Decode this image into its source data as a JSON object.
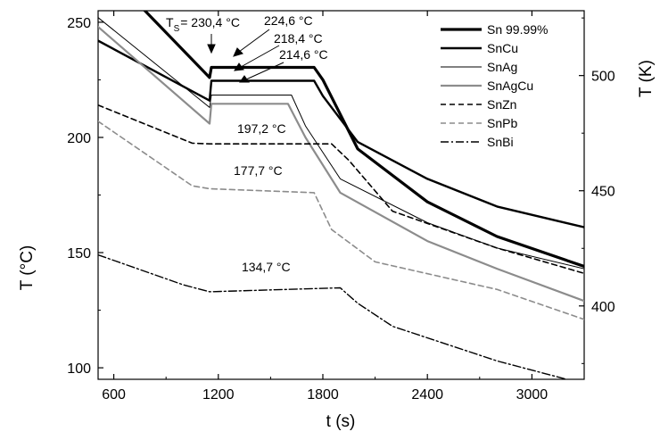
{
  "chart_data": {
    "type": "line",
    "xlabel": "t (s)",
    "ylabel": "T (°C)",
    "y2label": "T (K)",
    "xlim": [
      510,
      3300
    ],
    "ylim": [
      95,
      255
    ],
    "y2lim": [
      368.15,
      528.15
    ],
    "xticks": [
      "600",
      "1200",
      "1800",
      "2400",
      "3000"
    ],
    "yticks": [
      "100",
      "150",
      "200",
      "250"
    ],
    "y2ticks": [
      "400",
      "450",
      "500"
    ],
    "grid": false,
    "legend_position": "top-right",
    "annotations": {
      "ts_prefix": "T",
      "ts_sub": "S",
      "ts_value": "= 230,4 °C",
      "sncu": "224,6 °C",
      "snag": "218,4 °C",
      "snagcu": "214,6 °C",
      "snzn": "197,2 °C",
      "snpb": "177,7 °C",
      "snbi": "134,7 °C"
    },
    "series": [
      {
        "name": "Sn 99.99%",
        "color": "#000000",
        "width": 3.2,
        "dash": "",
        "x": [
          510,
          1150,
          1160,
          1750,
          1800,
          2000,
          2400,
          2800,
          3300
        ],
        "y": [
          276,
          226,
          230.4,
          230.4,
          225,
          195,
          172,
          157,
          144
        ]
      },
      {
        "name": "SnCu",
        "color": "#000000",
        "width": 2.4,
        "dash": "",
        "x": [
          510,
          1150,
          1160,
          1750,
          1800,
          2000,
          2400,
          2800,
          3300
        ],
        "y": [
          242,
          216,
          224.6,
          224.6,
          218,
          198,
          182,
          170,
          161
        ]
      },
      {
        "name": "SnAg",
        "color": "#000000",
        "width": 1.0,
        "dash": "",
        "x": [
          510,
          1150,
          1160,
          1620,
          1700,
          1900,
          2400,
          2800,
          3300
        ],
        "y": [
          252,
          213,
          218.4,
          218.4,
          205,
          182,
          163,
          152,
          143
        ]
      },
      {
        "name": "SnAgCu",
        "color": "#8c8c8c",
        "width": 2.2,
        "dash": "",
        "x": [
          510,
          1150,
          1160,
          1600,
          1700,
          1900,
          2400,
          2800,
          3300
        ],
        "y": [
          248,
          206,
          214.6,
          214.6,
          200,
          176,
          155,
          143,
          129
        ]
      },
      {
        "name": "SnZn",
        "color": "#000000",
        "width": 1.6,
        "dash": "6 4",
        "x": [
          510,
          1050,
          1150,
          1850,
          1950,
          2200,
          2800,
          3300
        ],
        "y": [
          214,
          197.5,
          197.2,
          197.2,
          190,
          168,
          152,
          141
        ]
      },
      {
        "name": "SnPb",
        "color": "#8c8c8c",
        "width": 1.6,
        "dash": "6 4",
        "x": [
          510,
          1050,
          1150,
          1750,
          1850,
          2100,
          2800,
          3300
        ],
        "y": [
          207,
          179,
          177.7,
          176,
          160,
          146,
          134,
          121
        ]
      },
      {
        "name": "SnBi",
        "color": "#000000",
        "width": 1.4,
        "dash": "9 3 2 3",
        "x": [
          510,
          1000,
          1150,
          1900,
          2000,
          2200,
          2800,
          3300
        ],
        "y": [
          149,
          136,
          133,
          134.7,
          128,
          118,
          103,
          93
        ]
      }
    ]
  }
}
